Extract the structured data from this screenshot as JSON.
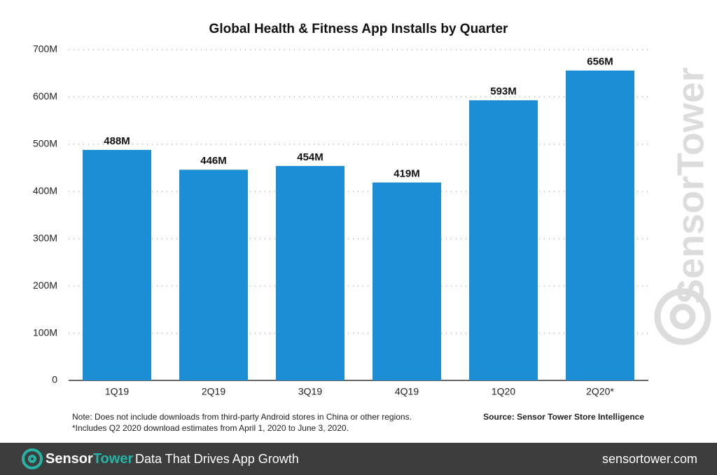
{
  "chart_data": {
    "type": "bar",
    "title": "Global Health & Fitness App Installs by Quarter",
    "categories": [
      "1Q19",
      "2Q19",
      "3Q19",
      "4Q19",
      "1Q20",
      "2Q20*"
    ],
    "values": [
      488,
      446,
      454,
      419,
      593,
      656
    ],
    "value_labels": [
      "488M",
      "446M",
      "454M",
      "419M",
      "593M",
      "656M"
    ],
    "color": "#1b8ed6",
    "ylim": [
      0,
      700
    ],
    "yticks": [
      0,
      {
        "value": 100,
        "label": "100M"
      },
      {
        "value": 200,
        "label": "200M"
      },
      {
        "value": 300,
        "label": "300M"
      },
      {
        "value": 400,
        "label": "400M"
      },
      {
        "value": 500,
        "label": "500M"
      },
      {
        "value": 600,
        "label": "600M"
      },
      {
        "value": 700,
        "label": "700M"
      }
    ],
    "grid": true,
    "notes": [
      "Note: Does not include downloads from third-party Android stores in China or other regions.",
      "*Includes Q2 2020 download estimates from April 1, 2020 to June 3, 2020."
    ],
    "source": "Source: Sensor Tower Store Intelligence",
    "watermark": "SensorTower"
  },
  "footer": {
    "brand": [
      "Sensor",
      "Tower"
    ],
    "tagline": "Data That Drives App Growth",
    "url": "sensortower.com"
  }
}
